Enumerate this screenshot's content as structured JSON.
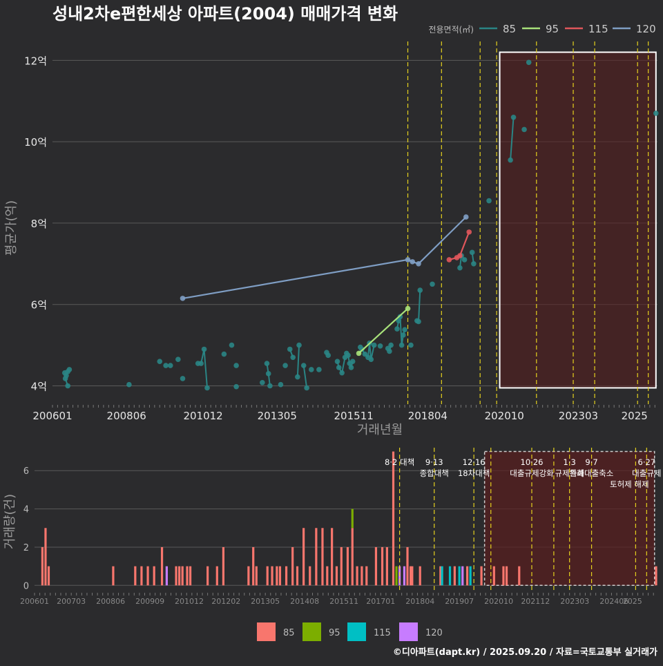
{
  "title": "성내2차e편한세상 아파트(2004) 매매가격 변화",
  "credit": "©디아파트(dapt.kr) / 2025.09.20 / 자료=국토교통부 실거래가",
  "colors": {
    "background": "#2b2b2d",
    "grid": "#5a5a5a",
    "s85": "#2a8585",
    "s95": "#a8e27a",
    "s115": "#e0565b",
    "s120": "#7f9ec4",
    "bar85": "#f8766d",
    "bar95": "#7cae00",
    "bar115": "#00bfc4",
    "bar120": "#c77cff",
    "policy_line": "#e6d21e",
    "region_fill": "#5a1e1e",
    "region_border": "#ffffff"
  },
  "chart_data": [
    {
      "type": "line",
      "title": "성내2차e편한세상 아파트(2004) 매매가격 변화",
      "xlabel": "거래년월",
      "ylabel": "평균가(억)",
      "x_ticks": [
        "200601",
        "200806",
        "201012",
        "201305",
        "201511",
        "201804",
        "202010",
        "202303",
        "2025"
      ],
      "y_ticks": [
        4,
        6,
        8,
        10,
        12
      ],
      "y_tick_labels": [
        "4억",
        "6억",
        "8억",
        "10억",
        "12억"
      ],
      "xlim": [
        2006.0,
        2025.75
      ],
      "ylim": [
        3.55,
        12.6
      ],
      "legend": {
        "title": "전용면적(㎡)",
        "position": "top-right",
        "entries": [
          "85",
          "95",
          "115",
          "120"
        ]
      },
      "highlight_region": {
        "x": [
          2020.6,
          2025.7
        ],
        "y": [
          3.95,
          12.2
        ]
      },
      "policy_lines_x": [
        2017.6,
        2018.7,
        2019.96,
        2020.5,
        2021.8,
        2023.0,
        2023.7,
        2025.1,
        2025.45
      ],
      "series": [
        {
          "name": "85",
          "points": [
            [
              2006.4,
              4.32
            ],
            [
              2006.45,
              4.25
            ],
            [
              2006.5,
              4.35
            ],
            [
              2006.55,
              4.4
            ],
            [
              2006.42,
              4.18
            ],
            [
              2006.5,
              4.0
            ],
            [
              2008.5,
              4.03
            ],
            [
              2009.5,
              4.6
            ],
            [
              2009.7,
              4.5
            ],
            [
              2009.85,
              4.5
            ],
            [
              2010.1,
              4.65
            ],
            [
              2010.25,
              4.18
            ],
            [
              2010.75,
              4.55
            ],
            [
              2010.85,
              4.55
            ],
            [
              2010.95,
              4.9
            ],
            [
              2011.05,
              3.95
            ],
            [
              2011.6,
              4.78
            ],
            [
              2011.85,
              5.0
            ],
            [
              2012.0,
              4.5
            ],
            [
              2012.0,
              3.98
            ],
            [
              2012.85,
              4.08
            ],
            [
              2013.0,
              4.55
            ],
            [
              2013.05,
              4.3
            ],
            [
              2013.1,
              4.0
            ],
            [
              2013.45,
              4.03
            ],
            [
              2013.6,
              4.5
            ],
            [
              2013.75,
              4.9
            ],
            [
              2013.85,
              4.7
            ],
            [
              2014.0,
              4.22
            ],
            [
              2014.05,
              5.0
            ],
            [
              2014.2,
              4.5
            ],
            [
              2014.3,
              3.95
            ],
            [
              2014.45,
              4.4
            ],
            [
              2014.7,
              4.4
            ],
            [
              2014.95,
              4.82
            ],
            [
              2015.0,
              4.75
            ],
            [
              2015.3,
              4.6
            ],
            [
              2015.35,
              4.45
            ],
            [
              2015.45,
              4.32
            ],
            [
              2015.55,
              4.7
            ],
            [
              2015.6,
              4.8
            ],
            [
              2015.65,
              4.75
            ],
            [
              2015.7,
              4.55
            ],
            [
              2015.75,
              4.45
            ],
            [
              2015.8,
              4.6
            ],
            [
              2016.05,
              4.95
            ],
            [
              2016.1,
              4.9
            ],
            [
              2016.2,
              4.78
            ],
            [
              2016.3,
              4.7
            ],
            [
              2016.35,
              5.05
            ],
            [
              2016.4,
              4.65
            ],
            [
              2016.5,
              5.0
            ],
            [
              2016.7,
              4.98
            ],
            [
              2016.95,
              4.92
            ],
            [
              2017.0,
              4.85
            ],
            [
              2017.05,
              5.0
            ],
            [
              2017.25,
              5.4
            ],
            [
              2017.3,
              5.6
            ],
            [
              2017.35,
              5.7
            ],
            [
              2017.4,
              5.0
            ],
            [
              2017.45,
              5.25
            ],
            [
              2017.5,
              5.38
            ],
            [
              2017.7,
              5.0
            ],
            [
              2017.9,
              5.6
            ],
            [
              2017.95,
              5.58
            ],
            [
              2018.0,
              6.35
            ],
            [
              2018.4,
              6.5
            ],
            [
              2019.3,
              6.9
            ],
            [
              2019.35,
              7.2
            ],
            [
              2019.45,
              7.1
            ],
            [
              2019.7,
              7.28
            ],
            [
              2019.75,
              7.0
            ],
            [
              2020.25,
              8.55
            ],
            [
              2020.95,
              9.55
            ],
            [
              2021.05,
              10.6
            ],
            [
              2021.4,
              10.3
            ],
            [
              2021.55,
              11.95
            ],
            [
              2025.7,
              10.7
            ]
          ]
        },
        {
          "name": "95",
          "points": [
            [
              2016.0,
              4.8
            ],
            [
              2017.6,
              5.9
            ]
          ]
        },
        {
          "name": "115",
          "points": [
            [
              2018.95,
              7.1
            ],
            [
              2019.2,
              7.15
            ],
            [
              2019.3,
              7.2
            ],
            [
              2019.6,
              7.78
            ]
          ]
        },
        {
          "name": "120",
          "points": [
            [
              2010.25,
              6.15
            ],
            [
              2017.6,
              7.1
            ],
            [
              2017.75,
              7.05
            ],
            [
              2017.95,
              7.0
            ],
            [
              2019.5,
              8.15
            ]
          ]
        }
      ]
    },
    {
      "type": "bar",
      "ylabel": "거래량(건)",
      "x_ticks": [
        "200601",
        "200703",
        "200806",
        "200909",
        "201012",
        "201202",
        "201305",
        "201408",
        "201511",
        "201701",
        "201804",
        "201907",
        "202010",
        "202112",
        "202303",
        "202406",
        "2025"
      ],
      "y_ticks": [
        0,
        2,
        4,
        6
      ],
      "xlim": [
        2006.0,
        2025.75
      ],
      "ylim": [
        -0.35,
        7.2
      ],
      "legend": {
        "position": "bottom",
        "entries": [
          "85",
          "95",
          "115",
          "120"
        ]
      },
      "highlight_region": {
        "x": [
          2020.3,
          2025.7
        ],
        "y": [
          0,
          7
        ]
      },
      "annotations": [
        {
          "x": 2017.6,
          "lines": [
            "8·2 대책"
          ]
        },
        {
          "x": 2018.7,
          "lines": [
            "9·13",
            "종합대책"
          ]
        },
        {
          "x": 2019.96,
          "lines": [
            "12·16",
            "18차대책"
          ]
        },
        {
          "x": 2021.8,
          "lines": [
            "10·26",
            "대출규제강화"
          ]
        },
        {
          "x": 2023.0,
          "lines": [
            "1·3",
            "규제완화"
          ]
        },
        {
          "x": 2023.7,
          "lines": [
            "9·7",
            "특례대출축소"
          ]
        },
        {
          "x": 2025.45,
          "lines": [
            "6·27",
            "대출규제"
          ]
        }
      ],
      "extra_labels": [
        {
          "x": 2024.9,
          "text": "토허제 해제"
        }
      ],
      "policy_lines_x": [
        2017.6,
        2018.7,
        2019.96,
        2020.5,
        2021.8,
        2022.5,
        2023.0,
        2023.7,
        2025.1,
        2025.45
      ],
      "series": [
        {
          "name": "85",
          "bars": [
            [
              2006.25,
              2
            ],
            [
              2006.35,
              3
            ],
            [
              2006.45,
              1
            ],
            [
              2008.5,
              1
            ],
            [
              2009.2,
              1
            ],
            [
              2009.4,
              1
            ],
            [
              2009.6,
              1
            ],
            [
              2009.8,
              1
            ],
            [
              2010.05,
              2
            ],
            [
              2010.5,
              1
            ],
            [
              2010.6,
              1
            ],
            [
              2010.7,
              1
            ],
            [
              2010.85,
              1
            ],
            [
              2010.95,
              1
            ],
            [
              2011.5,
              1
            ],
            [
              2011.8,
              1
            ],
            [
              2012.0,
              2
            ],
            [
              2012.8,
              1
            ],
            [
              2012.95,
              2
            ],
            [
              2013.05,
              1
            ],
            [
              2013.4,
              1
            ],
            [
              2013.55,
              1
            ],
            [
              2013.7,
              1
            ],
            [
              2013.8,
              1
            ],
            [
              2014.0,
              1
            ],
            [
              2014.2,
              2
            ],
            [
              2014.35,
              1
            ],
            [
              2014.55,
              3
            ],
            [
              2014.75,
              1
            ],
            [
              2014.95,
              3
            ],
            [
              2015.15,
              3
            ],
            [
              2015.3,
              1
            ],
            [
              2015.45,
              3
            ],
            [
              2015.6,
              1
            ],
            [
              2015.75,
              2
            ],
            [
              2015.95,
              2
            ],
            [
              2016.1,
              3
            ],
            [
              2016.25,
              1
            ],
            [
              2016.4,
              1
            ],
            [
              2016.55,
              1
            ],
            [
              2016.85,
              2
            ],
            [
              2017.05,
              2
            ],
            [
              2017.2,
              2
            ],
            [
              2017.4,
              7
            ],
            [
              2017.85,
              2
            ],
            [
              2017.95,
              1
            ],
            [
              2018.0,
              1
            ],
            [
              2018.25,
              1
            ],
            [
              2018.9,
              1
            ],
            [
              2019.35,
              1
            ],
            [
              2019.75,
              1
            ],
            [
              2020.2,
              1
            ],
            [
              2020.6,
              1
            ],
            [
              2020.9,
              1
            ],
            [
              2021.0,
              1
            ],
            [
              2021.4,
              1
            ],
            [
              2025.75,
              1
            ]
          ]
        },
        {
          "name": "95",
          "bars": [
            [
              2016.1,
              1
            ],
            [
              2017.5,
              1
            ]
          ]
        },
        {
          "name": "115",
          "bars": [
            [
              2018.95,
              1
            ],
            [
              2019.2,
              1
            ],
            [
              2019.5,
              1
            ],
            [
              2019.85,
              1
            ]
          ]
        },
        {
          "name": "120",
          "bars": [
            [
              2010.2,
              1
            ],
            [
              2017.6,
              1
            ],
            [
              2017.75,
              1
            ],
            [
              2019.6,
              1
            ]
          ]
        }
      ]
    }
  ]
}
